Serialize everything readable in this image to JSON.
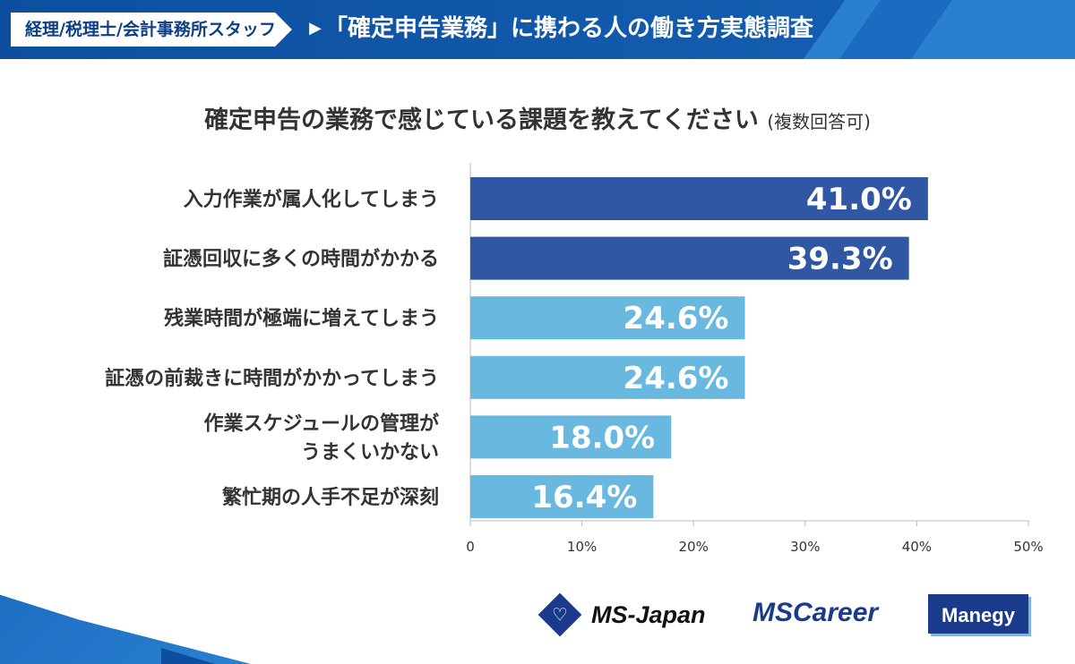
{
  "header": {
    "tag": "経理/税理士/会計事務所スタッフ",
    "arrow_icon": "triangle-right",
    "title": "「確定申告業務」に携わる人の働き方実態調査",
    "colors": {
      "primary": "#0d4f9e",
      "accent": "#2a7fd0"
    }
  },
  "chart_data": {
    "type": "bar",
    "orientation": "horizontal",
    "title": "確定申告の業務で感じている課題を教えてください",
    "title_note": "(複数回答可)",
    "categories": [
      [
        "入力作業が属人化してしまう"
      ],
      [
        "証憑回収に多くの時間がかかる"
      ],
      [
        "残業時間が極端に増えてしまう"
      ],
      [
        "証憑の前裁きに時間がかかってしまう"
      ],
      [
        "作業スケジュールの管理が",
        "うまくいかない"
      ],
      [
        "繁忙期の人手不足が深刻"
      ]
    ],
    "values": [
      41.0,
      39.3,
      24.6,
      24.6,
      18.0,
      16.4
    ],
    "value_labels": [
      "41.0%",
      "39.3%",
      "24.6%",
      "24.6%",
      "18.0%",
      "16.4%"
    ],
    "bar_colors": [
      "#2f57a4",
      "#2f57a4",
      "#69b8e0",
      "#69b8e0",
      "#69b8e0",
      "#69b8e0"
    ],
    "xlim": [
      0,
      50
    ],
    "xticks": [
      0,
      10,
      20,
      30,
      40,
      50
    ],
    "xtick_labels": [
      "0",
      "10%",
      "20%",
      "30%",
      "40%",
      "50%"
    ],
    "grid": false
  },
  "footer": {
    "logos": [
      "MS-Japan",
      "MSCareer",
      "Manegy"
    ],
    "msjapan_mark": "♡"
  }
}
